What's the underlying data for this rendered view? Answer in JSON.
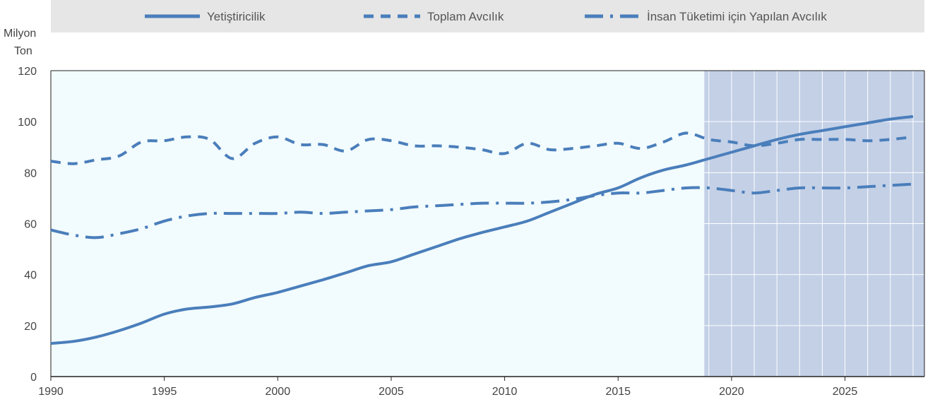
{
  "chart_data": {
    "type": "line",
    "unit_label": [
      "Milyon",
      "Ton"
    ],
    "xlim": [
      1990,
      2028.5
    ],
    "ylim": [
      0,
      120
    ],
    "x_ticks": [
      "1990",
      "1995",
      "2000",
      "2005",
      "2010",
      "2015",
      "2020",
      "2025"
    ],
    "y_ticks": [
      "0",
      "20",
      "40",
      "60",
      "80",
      "100",
      "120"
    ],
    "projection_start": 2018.8,
    "legend_position": "top",
    "grid": "vertical and horizontal in projection area",
    "colors": {
      "line": "#4a7ebb",
      "plot_background": "#f2fbfd",
      "projection_background": "#c3d0e6",
      "legend_background": "#e6e6e6",
      "grid": "#ffffff"
    },
    "series": [
      {
        "name": "Yetiştiricilik",
        "style": "solid",
        "x": [
          1990,
          1991,
          1992,
          1993,
          1994,
          1995,
          1996,
          1997,
          1998,
          1999,
          2000,
          2001,
          2002,
          2003,
          2004,
          2005,
          2006,
          2007,
          2008,
          2009,
          2010,
          2011,
          2012,
          2013,
          2014,
          2015,
          2016,
          2017,
          2018,
          2019,
          2020,
          2021,
          2022,
          2023,
          2024,
          2025,
          2026,
          2027,
          2028
        ],
        "values": [
          13,
          13.8,
          15.5,
          18,
          21,
          24.5,
          26.5,
          27.3,
          28.5,
          31,
          33,
          35.5,
          38,
          40.7,
          43.5,
          45,
          48,
          51,
          54,
          56.5,
          58.7,
          61,
          64.5,
          68,
          71.5,
          74,
          78,
          81,
          83,
          85.5,
          88,
          90.5,
          93,
          95,
          96.5,
          98,
          99.5,
          101,
          102
        ]
      },
      {
        "name": "Toplam Avcılık",
        "style": "dashed",
        "x": [
          1990,
          1991,
          1992,
          1993,
          1994,
          1995,
          1996,
          1997,
          1998,
          1999,
          2000,
          2001,
          2002,
          2003,
          2004,
          2005,
          2006,
          2007,
          2008,
          2009,
          2010,
          2011,
          2012,
          2013,
          2014,
          2015,
          2016,
          2017,
          2018,
          2019,
          2020,
          2021,
          2022,
          2023,
          2024,
          2025,
          2026,
          2027,
          2028
        ],
        "values": [
          84.5,
          83.5,
          85,
          86.5,
          92,
          92.5,
          94,
          93,
          85.5,
          91.5,
          94,
          91,
          91,
          88.5,
          93,
          92.5,
          90.5,
          90.5,
          90,
          89,
          87.5,
          91.5,
          89,
          89.5,
          90.5,
          91.5,
          89.5,
          92,
          95.5,
          93,
          92,
          90.5,
          91.5,
          93,
          93,
          93,
          92.5,
          93,
          94
        ]
      },
      {
        "name": "İnsan Tüketimi için Yapılan Avcılık",
        "style": "dash-dot",
        "x": [
          1990,
          1991,
          1992,
          1993,
          1994,
          1995,
          1996,
          1997,
          1998,
          1999,
          2000,
          2001,
          2002,
          2003,
          2004,
          2005,
          2006,
          2007,
          2008,
          2009,
          2010,
          2011,
          2012,
          2013,
          2014,
          2015,
          2016,
          2017,
          2018,
          2019,
          2020,
          2021,
          2022,
          2023,
          2024,
          2025,
          2026,
          2027,
          2028
        ],
        "values": [
          57.5,
          55.5,
          54.5,
          56,
          58,
          61,
          63,
          64,
          64,
          64,
          64,
          64.5,
          64,
          64.5,
          65,
          65.5,
          66.5,
          67,
          67.5,
          68,
          68,
          68,
          68.5,
          69.5,
          71,
          72,
          72,
          73,
          74,
          74,
          73,
          72,
          73,
          74,
          74,
          74,
          74.5,
          75,
          75.5
        ]
      }
    ]
  }
}
